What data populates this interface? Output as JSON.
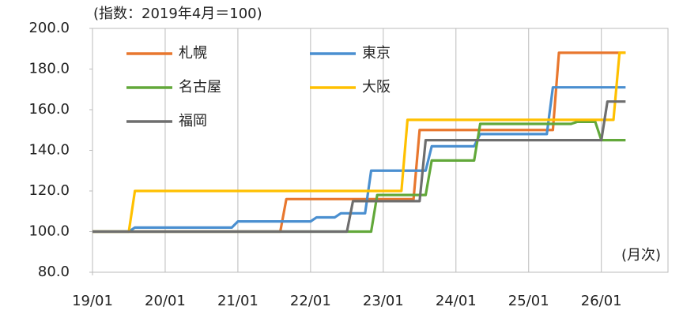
{
  "chart_data": {
    "type": "line",
    "ylabel": "(指数：2019年4月＝100)",
    "xlabel": "(月次)",
    "xlim": [
      "19/01",
      "26/12"
    ],
    "xticks": [
      "19/01",
      "20/01",
      "21/01",
      "22/01",
      "23/01",
      "24/01",
      "25/01",
      "26/01"
    ],
    "ylim": [
      80,
      200
    ],
    "yticks": [
      {
        "value": 80,
        "label": "80.0"
      },
      {
        "value": 100,
        "label": "100.0"
      },
      {
        "value": 120,
        "label": "120.0"
      },
      {
        "value": 140,
        "label": "140.0"
      },
      {
        "value": 160,
        "label": "160.0"
      },
      {
        "value": 180,
        "label": "180.0"
      },
      {
        "value": 200,
        "label": "200.0"
      }
    ],
    "grid": "x",
    "legend": "upper-left",
    "series": [
      {
        "name": "札幌",
        "color": "#e8772e",
        "x": [
          "19/01",
          "21/08",
          "21/09",
          "23/06",
          "23/07",
          "25/05",
          "25/06",
          "26/05"
        ],
        "values": [
          100,
          100,
          116,
          116,
          150,
          150,
          188,
          188
        ]
      },
      {
        "name": "東京",
        "color": "#4a8fd0",
        "x": [
          "19/01",
          "19/07",
          "19/08",
          "20/12",
          "21/01",
          "22/01",
          "22/02",
          "22/05",
          "22/06",
          "22/10",
          "22/11",
          "23/08",
          "23/09",
          "24/04",
          "24/05",
          "25/04",
          "25/05",
          "26/05"
        ],
        "values": [
          100,
          100,
          102,
          102,
          105,
          105,
          107,
          107,
          109,
          109,
          130,
          130,
          142,
          142,
          148,
          148,
          171,
          171
        ]
      },
      {
        "name": "名古屋",
        "color": "#62a83a",
        "x": [
          "19/01",
          "22/11",
          "22/12",
          "23/08",
          "23/09",
          "24/04",
          "24/05",
          "25/08",
          "25/09",
          "25/12",
          "26/01",
          "26/05"
        ],
        "values": [
          100,
          100,
          118,
          118,
          135,
          135,
          153,
          153,
          154,
          154,
          145,
          145
        ]
      },
      {
        "name": "大阪",
        "color": "#ffc000",
        "x": [
          "19/01",
          "19/07",
          "19/08",
          "23/04",
          "23/05",
          "26/03",
          "26/04",
          "26/05"
        ],
        "values": [
          100,
          100,
          120,
          120,
          155,
          155,
          188,
          188
        ]
      },
      {
        "name": "福岡",
        "color": "#6e6e6e",
        "x": [
          "19/01",
          "22/07",
          "22/08",
          "23/07",
          "23/08",
          "26/01",
          "26/02",
          "26/05"
        ],
        "values": [
          100,
          100,
          115,
          115,
          145,
          145,
          164,
          164
        ]
      }
    ]
  }
}
